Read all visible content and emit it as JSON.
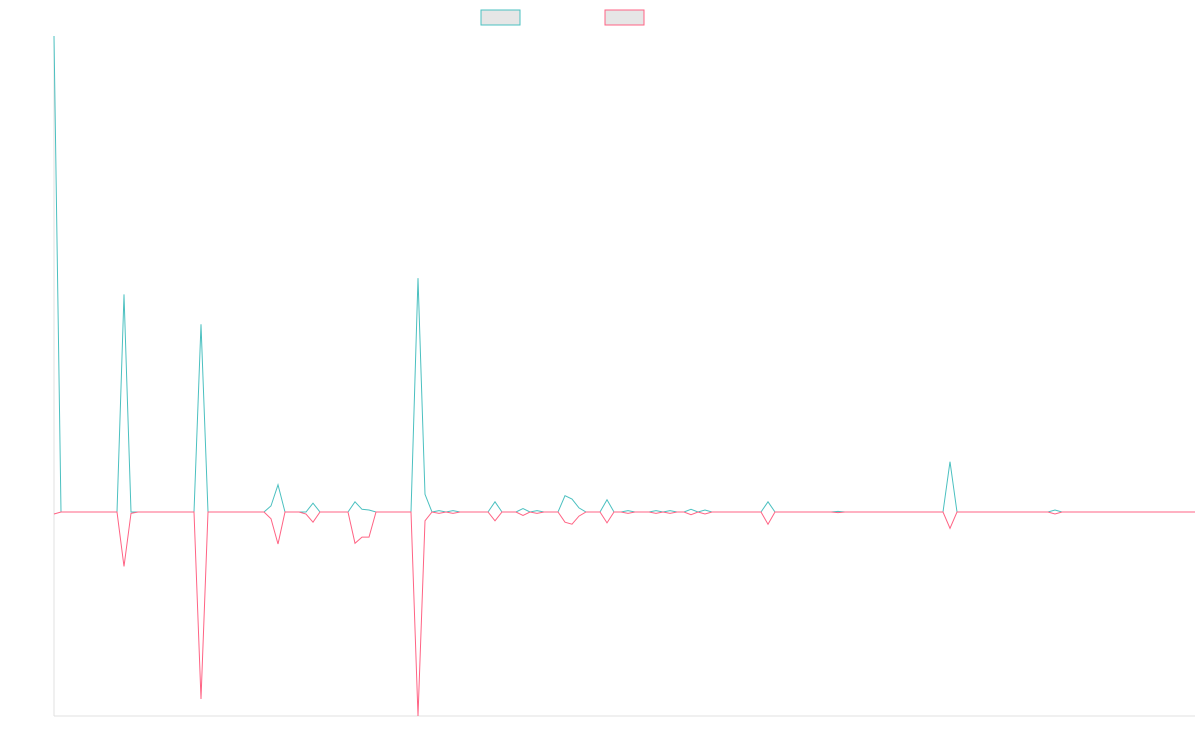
{
  "chart_data": {
    "type": "line",
    "ylim": [
      -30,
      70
    ],
    "series": [
      {
        "color": "#4bc0c0",
        "values": [
          70,
          0,
          0,
          0,
          0,
          0,
          0,
          0,
          0,
          0,
          32,
          0,
          0,
          0,
          0,
          0,
          0,
          0,
          0,
          0,
          0,
          27.6,
          0,
          0,
          0,
          0,
          0,
          0,
          0,
          0,
          0,
          0.9,
          4,
          0,
          0,
          0,
          0,
          1.3,
          0,
          0,
          0,
          0,
          0,
          1.5,
          0.4,
          0.3,
          0,
          0,
          0,
          0,
          0,
          0,
          34.4,
          2.6,
          0,
          0.2,
          0,
          0.2,
          0,
          0,
          0,
          0,
          0,
          1.5,
          0,
          0,
          0,
          0.5,
          0,
          0.2,
          0,
          0,
          0,
          2.4,
          1.9,
          0.6,
          0,
          0,
          0,
          1.8,
          0,
          0,
          0.2,
          0,
          0,
          0,
          0.2,
          0,
          0.2,
          0,
          0,
          0.4,
          0,
          0.3,
          0,
          0,
          0,
          0,
          0,
          0,
          0,
          0,
          1.5,
          0,
          0,
          0,
          0,
          0,
          0,
          0,
          0,
          0,
          0.1,
          0,
          0,
          0,
          0,
          0,
          0,
          0,
          0,
          0,
          0,
          0,
          0,
          0,
          0,
          0,
          7.4,
          0,
          0,
          0,
          0,
          0,
          0,
          0,
          0,
          0,
          0,
          0,
          0,
          0,
          0,
          0.3,
          0,
          0,
          0,
          0,
          0,
          0,
          0,
          0,
          0,
          0,
          0,
          0,
          0,
          0,
          0,
          0,
          0,
          0,
          0,
          0
        ]
      },
      {
        "color": "#ff6384",
        "values": [
          -0.3,
          0,
          0,
          0,
          0,
          0,
          0,
          0,
          0,
          0,
          -8,
          -0.2,
          0,
          0,
          0,
          0,
          0,
          0,
          0,
          0,
          0,
          -27.5,
          0,
          0,
          0,
          0,
          0,
          0,
          0,
          0,
          0,
          -1,
          -4.7,
          0,
          0,
          0,
          -0.3,
          -1.5,
          0,
          0,
          0,
          0,
          0,
          -4.6,
          -3.7,
          -3.7,
          0,
          0,
          0,
          0,
          0,
          0,
          -30,
          -1.3,
          0,
          -0.2,
          0,
          -0.2,
          0,
          0,
          0,
          0,
          0,
          -1.3,
          0,
          0,
          0,
          -0.5,
          0,
          -0.2,
          0,
          0,
          0,
          -1.5,
          -1.8,
          -0.6,
          0,
          0,
          0,
          -1.6,
          0,
          0,
          -0.2,
          0,
          0,
          0,
          -0.2,
          0,
          -0.2,
          0,
          0,
          -0.4,
          0,
          -0.3,
          0,
          0,
          0,
          0,
          0,
          0,
          0,
          0,
          -1.8,
          0,
          0,
          0,
          0,
          0,
          0,
          0,
          0,
          0,
          -0.1,
          0,
          0,
          0,
          0,
          0,
          0,
          0,
          0,
          0,
          0,
          0,
          0,
          0,
          0,
          0,
          -2.4,
          0,
          0,
          0,
          0,
          0,
          0,
          0,
          0,
          0,
          0,
          0,
          0,
          0,
          0,
          -0.3,
          0,
          0,
          0,
          0,
          0,
          0,
          0,
          0,
          0,
          0,
          0,
          0,
          0,
          0,
          0,
          0,
          0,
          0,
          0,
          0
        ]
      }
    ]
  }
}
